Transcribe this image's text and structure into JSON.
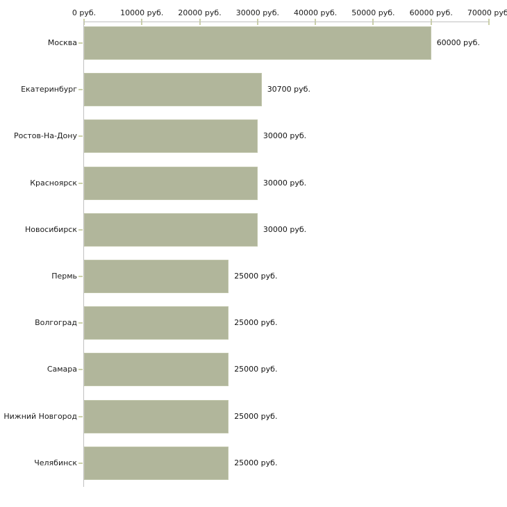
{
  "chart_data": {
    "type": "bar",
    "orientation": "horizontal",
    "title": "",
    "xlabel": "",
    "ylabel": "",
    "unit": "руб.",
    "xlim": [
      0,
      70000
    ],
    "grid": false,
    "legend": false,
    "categories": [
      "Москва",
      "Екатеринбург",
      "Ростов-На-Дону",
      "Красноярск",
      "Новосибирск",
      "Пермь",
      "Волгоград",
      "Самара",
      "Нижний Новгород",
      "Челябинск"
    ],
    "values": [
      60000,
      30700,
      30000,
      30000,
      30000,
      25000,
      25000,
      25000,
      25000,
      25000
    ],
    "value_labels": [
      "60000 руб.",
      "30700 руб.",
      "30000 руб.",
      "30000 руб.",
      "30000 руб.",
      "25000 руб.",
      "25000 руб.",
      "25000 руб.",
      "25000 руб.",
      "25000 руб."
    ],
    "x_ticks": [
      0,
      10000,
      20000,
      30000,
      40000,
      50000,
      60000,
      70000
    ],
    "x_tick_labels": [
      "0 руб.",
      "10000 руб.",
      "20000 руб.",
      "30000 руб.",
      "40000 руб.",
      "50000 руб.",
      "60000 руб.",
      "70000 руб."
    ],
    "colors": {
      "bar_fill": "#b1b69b",
      "bar_border": "#bfc4a9",
      "axis_line": "#c0c0c0",
      "tick_mark": "#ccd1a9",
      "text": "#1a1a1a",
      "background": "#ffffff"
    }
  }
}
